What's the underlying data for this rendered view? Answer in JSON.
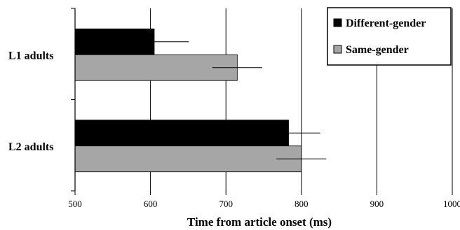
{
  "chart_data": {
    "type": "bar",
    "orientation": "horizontal",
    "title": "",
    "xlabel": "Time from article onset (ms)",
    "ylabel": "",
    "xlim": [
      500,
      1000
    ],
    "x_ticks": [
      "500",
      "600",
      "700",
      "800",
      "900",
      "1000"
    ],
    "categories": [
      "L1 adults",
      "L2 adults"
    ],
    "series": [
      {
        "name": "Different-gender",
        "color": "#000000",
        "values": [
          605,
          783
        ],
        "error": [
          46,
          42
        ]
      },
      {
        "name": "Same-gender",
        "color": "#a6a6a6",
        "values": [
          715,
          800
        ],
        "error": [
          33,
          33
        ]
      }
    ],
    "grid": "vertical",
    "legend": "top-right"
  }
}
